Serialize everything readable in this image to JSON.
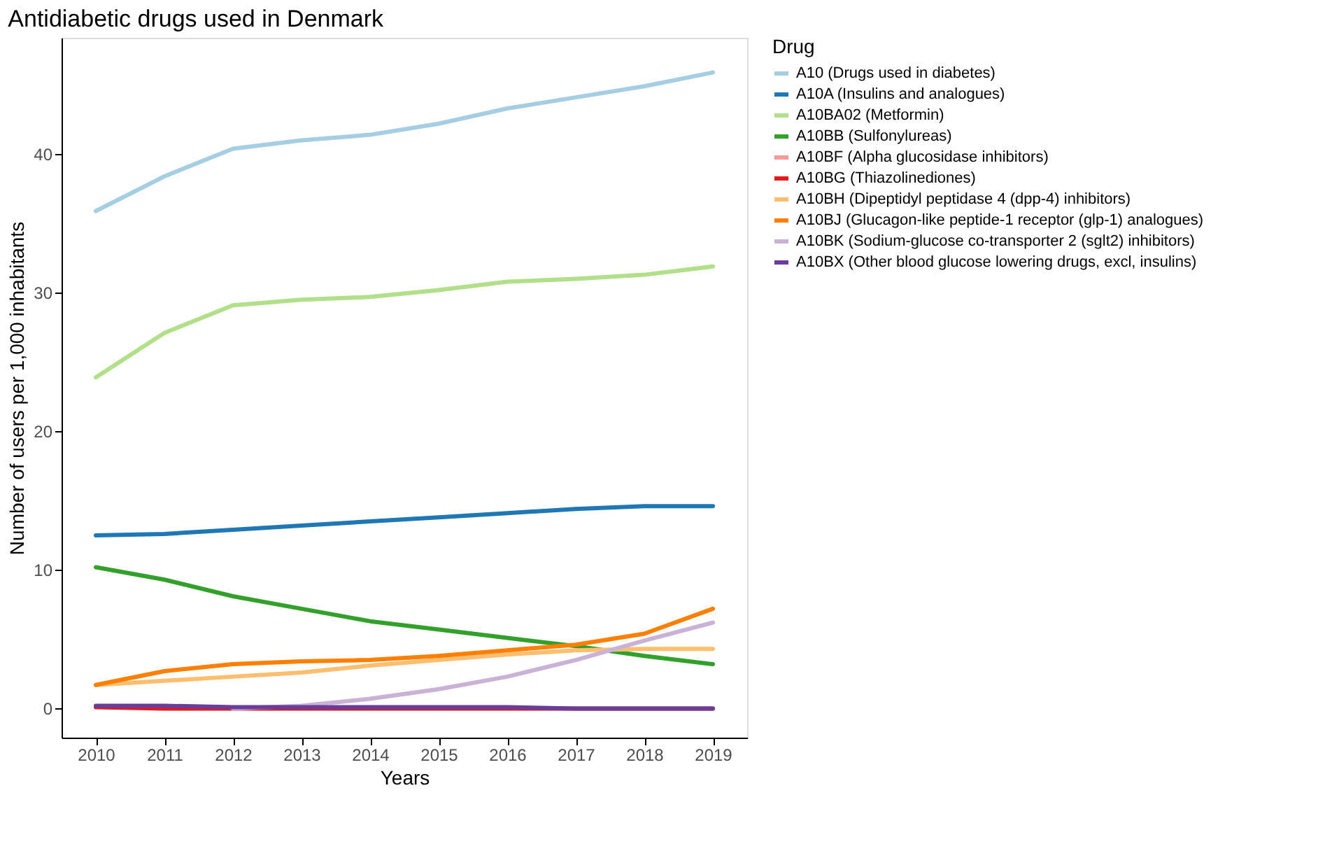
{
  "chart_data": {
    "type": "line",
    "title": "Antidiabetic drugs used in Denmark",
    "xlabel": "Years",
    "ylabel": "Number of users per 1,000 inhabitants",
    "legend_title": "Drug",
    "categories": [
      "2010",
      "2011",
      "2012",
      "2013",
      "2014",
      "2015",
      "2016",
      "2017",
      "2018",
      "2019"
    ],
    "ylim": [
      -2.1,
      48.4
    ],
    "yticks": [
      0,
      10,
      20,
      30,
      40
    ],
    "grid": false,
    "legend": "right",
    "line_style": "solid",
    "series": [
      {
        "name": "A10 (Drugs used in diabetes)",
        "color": "#a6cee3",
        "values": [
          35.9,
          38.4,
          40.4,
          41.0,
          41.4,
          42.2,
          43.3,
          44.1,
          44.9,
          45.9
        ]
      },
      {
        "name": "A10A (Insulins and analogues)",
        "color": "#1f78b4",
        "values": [
          12.5,
          12.6,
          12.9,
          13.2,
          13.5,
          13.8,
          14.1,
          14.4,
          14.6,
          14.6
        ]
      },
      {
        "name": "A10BA02 (Metformin)",
        "color": "#b2df8a",
        "values": [
          23.9,
          27.1,
          29.1,
          29.5,
          29.7,
          30.2,
          30.8,
          31.0,
          31.3,
          31.9
        ]
      },
      {
        "name": "A10BB (Sulfonylureas)",
        "color": "#33a02c",
        "values": [
          10.2,
          9.3,
          8.1,
          7.2,
          6.3,
          5.7,
          5.1,
          4.5,
          3.8,
          3.2
        ]
      },
      {
        "name": "A10BF (Alpha glucosidase inhibitors)",
        "color": "#fb9a99",
        "values": [
          null,
          null,
          null,
          null,
          null,
          null,
          null,
          null,
          null,
          null
        ]
      },
      {
        "name": "A10BG (Thiazolinediones)",
        "color": "#e31a1c",
        "values": [
          0.1,
          0,
          0,
          0,
          0,
          0,
          0,
          0,
          0,
          0
        ]
      },
      {
        "name": "A10BH (Dipeptidyl peptidase 4 (dpp-4) inhibitors)",
        "color": "#fdbf6f",
        "values": [
          1.7,
          2.0,
          2.3,
          2.6,
          3.1,
          3.5,
          3.9,
          4.2,
          4.3,
          4.3
        ]
      },
      {
        "name": "A10BJ (Glucagon-like peptide-1 receptor (glp-1) analogues)",
        "color": "#ff7f00",
        "values": [
          1.7,
          2.7,
          3.2,
          3.4,
          3.5,
          3.8,
          4.2,
          4.6,
          5.4,
          7.2
        ]
      },
      {
        "name": "A10BK (Sodium-glucose co-transporter 2 (sglt2) inhibitors)",
        "color": "#cab2d6",
        "values": [
          null,
          null,
          0.0,
          0.2,
          0.7,
          1.4,
          2.3,
          3.5,
          4.9,
          6.2
        ]
      },
      {
        "name": "A10BX (Other blood glucose lowering drugs, excl, insulins)",
        "color": "#6a3d9a",
        "values": [
          0.2,
          0.2,
          0.1,
          0.1,
          0.1,
          0.1,
          0.1,
          0,
          0,
          0
        ]
      }
    ]
  }
}
